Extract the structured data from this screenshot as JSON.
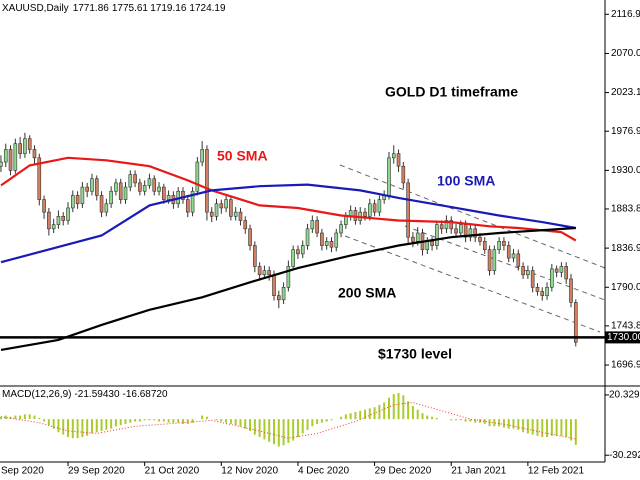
{
  "chart_data": {
    "type": "candlestick",
    "header": "XAUUSD,Daily",
    "header_values": [
      1771.86,
      1775.61,
      1719.16,
      1724.19
    ],
    "title": "GOLD D1 timeframe",
    "xlim": [
      -0.2,
      126.1
    ],
    "xticks": [
      {
        "value": -2,
        "label": "Sep 2020"
      },
      {
        "value": 14,
        "label": "29 Sep 2020"
      },
      {
        "value": 30,
        "label": "21 Oct 2020"
      },
      {
        "value": 46,
        "label": "12 Nov 2020"
      },
      {
        "value": 62,
        "label": "4 Dec 2020"
      },
      {
        "value": 78,
        "label": "29 Dec 2020"
      },
      {
        "value": 94,
        "label": "21 Jan 2021"
      },
      {
        "value": 110,
        "label": "12 Feb 2021"
      }
    ],
    "ylim": [
      1673,
      2134
    ],
    "yticks": [
      {
        "value": 2116.9,
        "label": "2116.90"
      },
      {
        "value": 2070,
        "label": "2070.00"
      },
      {
        "value": 2023.15,
        "label": "2023.15"
      },
      {
        "value": 1976.9,
        "label": "1976.90"
      },
      {
        "value": 1930,
        "label": "1930.00"
      },
      {
        "value": 1883.8,
        "label": "1883.80"
      },
      {
        "value": 1836.9,
        "label": "1836.90"
      },
      {
        "value": 1790,
        "label": "1790.00"
      },
      {
        "value": 1743.8,
        "label": "1743.80"
      },
      {
        "value": 1696.9,
        "label": "1696.90"
      }
    ],
    "colors": {
      "up": "#8fd88f",
      "down": "#d4805e"
    },
    "ohlc": [
      [
        1935,
        1948,
        1928,
        1940
      ],
      [
        1940,
        1962,
        1934,
        1955
      ],
      [
        1955,
        1960,
        1924,
        1930
      ],
      [
        1930,
        1968,
        1926,
        1962
      ],
      [
        1962,
        1970,
        1944,
        1950
      ],
      [
        1950,
        1975,
        1945,
        1968
      ],
      [
        1968,
        1972,
        1950,
        1955
      ],
      [
        1955,
        1960,
        1938,
        1945
      ],
      [
        1945,
        1950,
        1888,
        1895
      ],
      [
        1895,
        1900,
        1872,
        1880
      ],
      [
        1880,
        1885,
        1852,
        1860
      ],
      [
        1860,
        1872,
        1855,
        1865
      ],
      [
        1865,
        1882,
        1860,
        1875
      ],
      [
        1875,
        1880,
        1864,
        1870
      ],
      [
        1870,
        1892,
        1865,
        1885
      ],
      [
        1885,
        1906,
        1880,
        1900
      ],
      [
        1900,
        1905,
        1884,
        1890
      ],
      [
        1890,
        1916,
        1885,
        1910
      ],
      [
        1910,
        1915,
        1898,
        1905
      ],
      [
        1905,
        1926,
        1900,
        1920
      ],
      [
        1920,
        1924,
        1894,
        1900
      ],
      [
        1900,
        1905,
        1874,
        1880
      ],
      [
        1880,
        1896,
        1875,
        1890
      ],
      [
        1890,
        1911,
        1885,
        1905
      ],
      [
        1905,
        1920,
        1900,
        1915
      ],
      [
        1915,
        1920,
        1890,
        1895
      ],
      [
        1895,
        1916,
        1890,
        1910
      ],
      [
        1910,
        1930,
        1905,
        1925
      ],
      [
        1925,
        1930,
        1910,
        1915
      ],
      [
        1915,
        1920,
        1900,
        1905
      ],
      [
        1905,
        1918,
        1900,
        1912
      ],
      [
        1912,
        1926,
        1908,
        1920
      ],
      [
        1920,
        1924,
        1900,
        1905
      ],
      [
        1905,
        1916,
        1900,
        1910
      ],
      [
        1910,
        1914,
        1890,
        1895
      ],
      [
        1895,
        1906,
        1890,
        1900
      ],
      [
        1900,
        1905,
        1884,
        1890
      ],
      [
        1890,
        1910,
        1885,
        1905
      ],
      [
        1905,
        1910,
        1890,
        1895
      ],
      [
        1895,
        1900,
        1874,
        1880
      ],
      [
        1880,
        1910,
        1875,
        1905
      ],
      [
        1905,
        1946,
        1900,
        1940
      ],
      [
        1940,
        1965,
        1935,
        1955
      ],
      [
        1955,
        1960,
        1870,
        1880
      ],
      [
        1880,
        1886,
        1868,
        1875
      ],
      [
        1875,
        1896,
        1870,
        1890
      ],
      [
        1890,
        1895,
        1878,
        1885
      ],
      [
        1885,
        1900,
        1880,
        1895
      ],
      [
        1895,
        1900,
        1870,
        1875
      ],
      [
        1875,
        1886,
        1870,
        1880
      ],
      [
        1880,
        1885,
        1864,
        1870
      ],
      [
        1870,
        1875,
        1854,
        1860
      ],
      [
        1860,
        1865,
        1834,
        1840
      ],
      [
        1840,
        1845,
        1808,
        1815
      ],
      [
        1815,
        1820,
        1798,
        1805
      ],
      [
        1805,
        1816,
        1800,
        1810
      ],
      [
        1810,
        1815,
        1798,
        1805
      ],
      [
        1805,
        1810,
        1774,
        1780
      ],
      [
        1780,
        1786,
        1765,
        1775
      ],
      [
        1775,
        1796,
        1770,
        1790
      ],
      [
        1790,
        1822,
        1785,
        1815
      ],
      [
        1815,
        1840,
        1810,
        1835
      ],
      [
        1835,
        1840,
        1824,
        1830
      ],
      [
        1830,
        1846,
        1825,
        1840
      ],
      [
        1840,
        1866,
        1835,
        1860
      ],
      [
        1860,
        1876,
        1855,
        1870
      ],
      [
        1870,
        1875,
        1850,
        1855
      ],
      [
        1855,
        1860,
        1834,
        1840
      ],
      [
        1840,
        1850,
        1835,
        1845
      ],
      [
        1845,
        1850,
        1832,
        1838
      ],
      [
        1838,
        1860,
        1833,
        1855
      ],
      [
        1855,
        1870,
        1850,
        1865
      ],
      [
        1865,
        1880,
        1860,
        1875
      ],
      [
        1875,
        1888,
        1870,
        1882
      ],
      [
        1882,
        1886,
        1865,
        1870
      ],
      [
        1870,
        1886,
        1865,
        1880
      ],
      [
        1880,
        1885,
        1870,
        1875
      ],
      [
        1875,
        1896,
        1870,
        1890
      ],
      [
        1890,
        1895,
        1875,
        1880
      ],
      [
        1880,
        1900,
        1875,
        1895
      ],
      [
        1895,
        1906,
        1890,
        1900
      ],
      [
        1900,
        1952,
        1895,
        1945
      ],
      [
        1945,
        1960,
        1938,
        1950
      ],
      [
        1950,
        1955,
        1928,
        1935
      ],
      [
        1935,
        1940,
        1908,
        1915
      ],
      [
        1915,
        1920,
        1842,
        1850
      ],
      [
        1850,
        1856,
        1838,
        1845
      ],
      [
        1845,
        1862,
        1840,
        1855
      ],
      [
        1855,
        1860,
        1828,
        1835
      ],
      [
        1835,
        1850,
        1830,
        1845
      ],
      [
        1845,
        1850,
        1834,
        1840
      ],
      [
        1840,
        1870,
        1835,
        1865
      ],
      [
        1865,
        1870,
        1854,
        1860
      ],
      [
        1860,
        1876,
        1855,
        1870
      ],
      [
        1870,
        1875,
        1854,
        1860
      ],
      [
        1860,
        1866,
        1850,
        1855
      ],
      [
        1855,
        1870,
        1850,
        1865
      ],
      [
        1865,
        1870,
        1844,
        1850
      ],
      [
        1850,
        1866,
        1845,
        1860
      ],
      [
        1860,
        1865,
        1844,
        1850
      ],
      [
        1850,
        1855,
        1840,
        1845
      ],
      [
        1845,
        1850,
        1830,
        1835
      ],
      [
        1835,
        1840,
        1804,
        1810
      ],
      [
        1810,
        1840,
        1805,
        1835
      ],
      [
        1835,
        1850,
        1830,
        1845
      ],
      [
        1845,
        1850,
        1834,
        1840
      ],
      [
        1840,
        1845,
        1820,
        1825
      ],
      [
        1825,
        1836,
        1820,
        1830
      ],
      [
        1830,
        1835,
        1810,
        1815
      ],
      [
        1815,
        1820,
        1800,
        1805
      ],
      [
        1805,
        1816,
        1800,
        1810
      ],
      [
        1810,
        1815,
        1784,
        1790
      ],
      [
        1790,
        1795,
        1780,
        1785
      ],
      [
        1785,
        1790,
        1774,
        1780
      ],
      [
        1780,
        1796,
        1775,
        1790
      ],
      [
        1790,
        1818,
        1785,
        1812
      ],
      [
        1812,
        1816,
        1802,
        1808
      ],
      [
        1808,
        1820,
        1802,
        1815
      ],
      [
        1815,
        1820,
        1794,
        1800
      ],
      [
        1800,
        1806,
        1766,
        1772
      ],
      [
        1771.86,
        1775.61,
        1719.16,
        1724.19
      ]
    ],
    "lines": [
      {
        "name": "50 SMA",
        "color": "#e81818",
        "x": [
          0,
          6,
          14,
          22,
          31,
          39,
          44,
          54,
          62,
          71,
          83,
          94,
          102,
          108,
          117,
          120
        ],
        "values": [
          1912,
          1936,
          1945,
          1942,
          1935,
          1918,
          1906,
          1888,
          1885,
          1876,
          1870,
          1868,
          1863,
          1861,
          1856,
          1846
        ]
      },
      {
        "name": "100 SMA",
        "color": "#1a1ab8",
        "x": [
          0,
          21,
          31,
          44,
          54,
          64,
          75,
          83,
          94,
          104,
          113,
          120
        ],
        "values": [
          1820,
          1852,
          1888,
          1906,
          1911,
          1913,
          1906,
          1897,
          1886,
          1876,
          1868,
          1861
        ]
      },
      {
        "name": "200 SMA",
        "color": "#000000",
        "x": [
          0,
          12,
          21,
          31,
          42,
          52,
          62,
          73,
          83,
          94,
          104,
          120
        ],
        "values": [
          1715,
          1727,
          1745,
          1763,
          1778,
          1796,
          1813,
          1828,
          1840,
          1850,
          1855,
          1861
        ]
      }
    ],
    "level": {
      "value": 1730,
      "label": "1730.00",
      "name": "$1730 level"
    },
    "macd": {
      "label": "MACD(12,26,9)",
      "values_shown": [
        -21.5943,
        -16.6872
      ],
      "value_labels": [
        "-21.59430",
        "-16.68720"
      ],
      "ylim": [
        -36,
        27
      ],
      "yticks": [
        {
          "value": 20.329,
          "label": "20.3290"
        },
        {
          "value": -30.292,
          "label": "-30.2920"
        }
      ],
      "color": "#a8cc2a",
      "signal_color": "#ff3030",
      "histogram": [
        2,
        3,
        2,
        3,
        3,
        4,
        4,
        3,
        1,
        -2,
        -5,
        -8,
        -11,
        -13,
        -15,
        -16,
        -16,
        -15,
        -14,
        -12,
        -11,
        -10,
        -9,
        -8,
        -6,
        -5,
        -4,
        -3,
        -2,
        -2,
        -1,
        -1,
        -1,
        -2,
        -2,
        -3,
        -3,
        -3,
        -4,
        -4,
        -3,
        0,
        3,
        2,
        0,
        -1,
        -2,
        -3,
        -4,
        -5,
        -6,
        -8,
        -10,
        -13,
        -15,
        -17,
        -19,
        -21,
        -23,
        -22,
        -20,
        -18,
        -15,
        -12,
        -9,
        -6,
        -4,
        -3,
        -2,
        -1,
        0,
        2,
        4,
        5,
        6,
        7,
        8,
        9,
        10,
        12,
        14,
        18,
        21,
        22,
        20,
        15,
        11,
        8,
        5,
        3,
        2,
        1,
        0,
        0,
        -1,
        -1,
        -1,
        -2,
        -2,
        -3,
        -3,
        -4,
        -6,
        -6,
        -6,
        -7,
        -8,
        -8,
        -9,
        -11,
        -12,
        -13,
        -14,
        -15,
        -15,
        -14,
        -14,
        -14,
        -15,
        -18,
        -21.6
      ],
      "signal_x": [
        0,
        8,
        14,
        20,
        28,
        38,
        44,
        54,
        60,
        66,
        74,
        82,
        86,
        92,
        98,
        106,
        114,
        120
      ],
      "signal": [
        2,
        -3,
        -10,
        -12,
        -6,
        -3,
        -1,
        -10,
        -16,
        -12,
        -2,
        12,
        14,
        7,
        0,
        -5,
        -12,
        -16.7
      ]
    }
  }
}
